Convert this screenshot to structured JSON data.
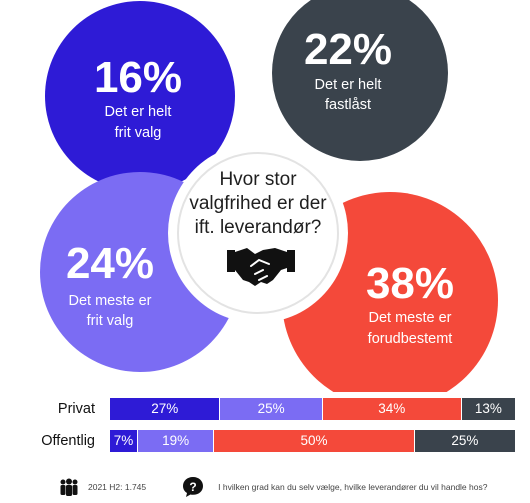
{
  "center_question": [
    "Hvor stor",
    "valgfrihed er der",
    "ift. leverandør?"
  ],
  "colors": {
    "frit_valg": "#2e1bd6",
    "meste_frit": "#7b6cf3",
    "meste_forud": "#f4493a",
    "fastlast": "#3a434c",
    "ring_fill": "#ffffff"
  },
  "chart_data": [
    {
      "type": "pie",
      "title": "Hvor stor valgfrihed er der ift. leverandør?",
      "slices": [
        {
          "label": "Det er helt frit valg",
          "label_lines": [
            "Det er helt",
            "frit valg"
          ],
          "value": 16,
          "value_label": "16%",
          "color": "#2e1bd6"
        },
        {
          "label": "Det er helt fastlåst",
          "label_lines": [
            "Det er helt",
            "fastlåst"
          ],
          "value": 22,
          "value_label": "22%",
          "color": "#3a434c"
        },
        {
          "label": "Det meste er forudbestemt",
          "label_lines": [
            "Det meste er",
            "forudbestemt"
          ],
          "value": 38,
          "value_label": "38%",
          "color": "#f4493a"
        },
        {
          "label": "Det meste er frit valg",
          "label_lines": [
            "Det meste er",
            "frit valg"
          ],
          "value": 24,
          "value_label": "24%",
          "color": "#7b6cf3"
        }
      ]
    },
    {
      "type": "bar",
      "orientation": "horizontal-stacked",
      "categories": [
        "Privat",
        "Offentlig"
      ],
      "series": [
        {
          "values": [
            27,
            7
          ],
          "labels": [
            "27%",
            "7%"
          ],
          "color": "#2e1bd6"
        },
        {
          "values": [
            25,
            19
          ],
          "labels": [
            "25%",
            "19%"
          ],
          "color": "#7b6cf3"
        },
        {
          "values": [
            34,
            50
          ],
          "labels": [
            "34%",
            "50%"
          ],
          "color": "#f4493a"
        },
        {
          "values": [
            13,
            25
          ],
          "labels": [
            "13%",
            "25%"
          ],
          "color": "#3a434c"
        }
      ]
    }
  ],
  "footer": {
    "base_text": "2021 H2: 1.745",
    "question_text": "I hvilken grad kan du selv vælge, hvilke leverandører du vil handle hos?",
    "people_icon": "people-icon",
    "question_icon": "question-icon"
  }
}
